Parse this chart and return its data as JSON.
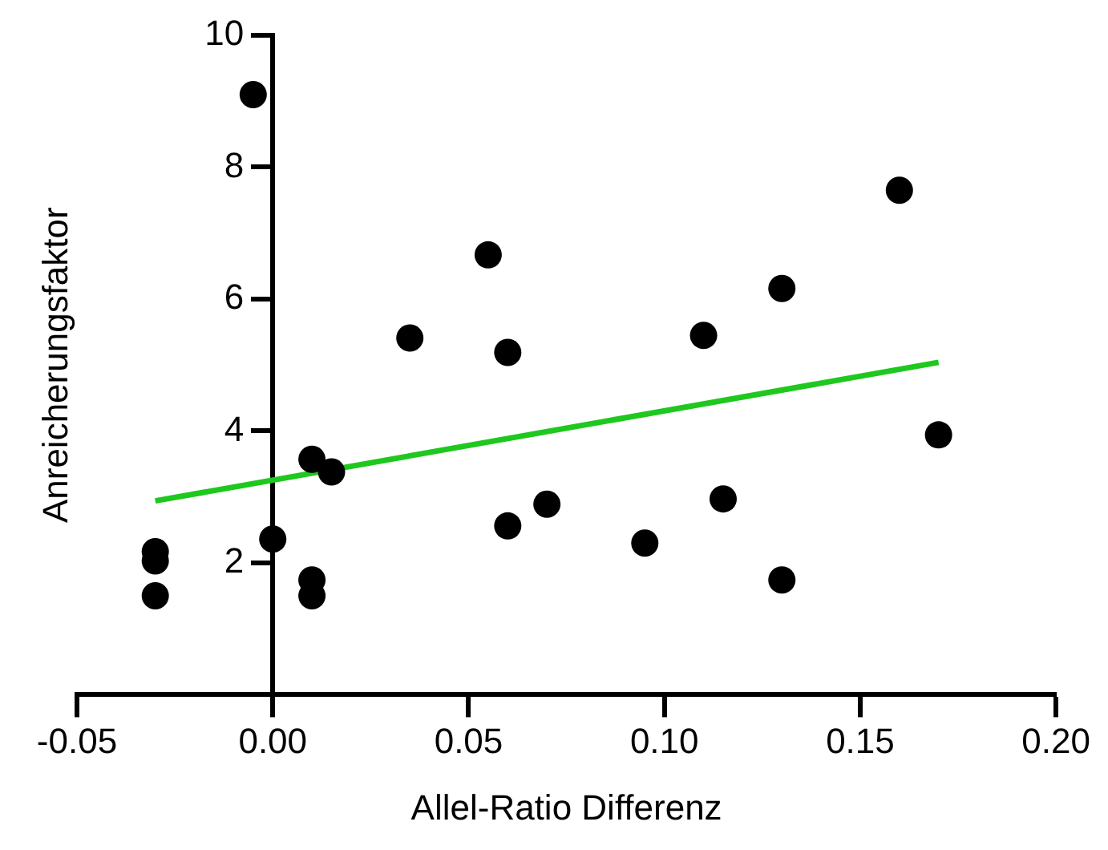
{
  "chart_data": {
    "type": "scatter",
    "xlabel": "Allel-Ratio Differenz",
    "ylabel": "Anreicherungsfaktor",
    "xlim": [
      -0.05,
      0.2
    ],
    "xticks": [
      {
        "value": -0.05,
        "label": "-0.05"
      },
      {
        "value": 0,
        "label": "0.00"
      },
      {
        "value": 0.05,
        "label": "0.05"
      },
      {
        "value": 0.1,
        "label": "0.10"
      },
      {
        "value": 0.15,
        "label": "0.15"
      },
      {
        "value": 0.2,
        "label": "0.20"
      }
    ],
    "ylim": [
      0,
      10
    ],
    "yticks": [
      2,
      4,
      6,
      8,
      10
    ],
    "series": [
      {
        "type": "scatter",
        "marker": "circle",
        "color": "#000000",
        "x": [
          -0.005,
          -0.03,
          -0.03,
          -0.03,
          0,
          0.01,
          0.015,
          0.01,
          0.01,
          0.035,
          0.055,
          0.06,
          0.06,
          0.07,
          0.16,
          0.13,
          0.11,
          0.17,
          0.115,
          0.095,
          0.13
        ],
        "values": [
          9.1,
          2.17,
          2.03,
          1.5,
          2.36,
          3.57,
          3.38,
          1.74,
          1.5,
          5.41,
          6.67,
          5.19,
          2.56,
          2.89,
          7.65,
          6.16,
          5.45,
          3.94,
          2.97,
          2.3,
          1.74
        ]
      },
      {
        "type": "line",
        "marker": "none",
        "color": "#1ec81e",
        "x": [
          -0.03,
          0.17
        ],
        "values": [
          2.94,
          5.04
        ]
      }
    ]
  }
}
